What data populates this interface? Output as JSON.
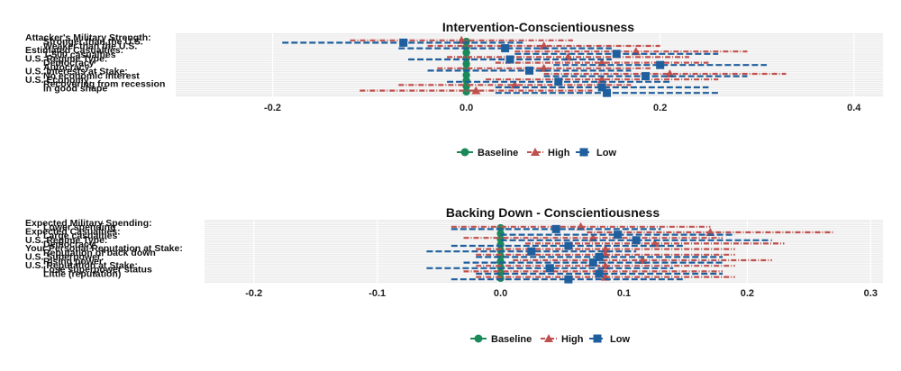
{
  "colors": {
    "Baseline": "#1b8a5a",
    "High": "#c0504d",
    "Low": "#1f5f9e",
    "panel": "#ebebeb",
    "grid": "#ffffff"
  },
  "legend_labels": [
    "Baseline",
    "High",
    "Low"
  ],
  "chart_data": [
    {
      "type": "scatter",
      "subtype": "coefficient-plot",
      "title": "Intervention-Conscientiousness",
      "xlim": [
        -0.3,
        0.43
      ],
      "xticks": [
        "-0.2",
        "0.0",
        "0.2",
        "0.4"
      ],
      "xtick_values": [
        -0.2,
        0.0,
        0.2,
        0.4
      ],
      "grid": true,
      "legend_position": "bottom",
      "series_names": [
        "Baseline",
        "High",
        "Low"
      ],
      "y_labels": [
        "Attacker's Military Strength:",
        "Stronger than the U.S.",
        "Weaker than the U.S.",
        "Estimated Casualties:",
        "1-500 casualties",
        "U.S. Regime Type:",
        "Democracy",
        "Autocracy",
        "U.S. Interests at Stake:",
        "No economic interest",
        "U.S. Economy:",
        "Recovering from recession",
        "In good shape"
      ],
      "series": [
        {
          "name": "Baseline",
          "x": [
            0,
            0,
            0,
            0,
            0,
            0,
            0,
            0,
            0,
            0
          ],
          "lo": [
            -0.01,
            -0.01,
            -0.01,
            -0.01,
            -0.01,
            -0.01,
            -0.01,
            -0.01,
            -0.01,
            -0.01
          ],
          "hi": [
            0.01,
            0.01,
            0.01,
            0.01,
            0.01,
            0.01,
            0.01,
            0.01,
            0.01,
            0.01
          ]
        },
        {
          "name": "High",
          "x": [
            -0.005,
            0.08,
            0.175,
            0.105,
            0.14,
            0.08,
            0.21,
            0.14,
            0.05,
            0.01
          ],
          "lo": [
            -0.12,
            -0.04,
            0.05,
            -0.02,
            0.03,
            -0.03,
            0.08,
            0.02,
            -0.07,
            -0.11
          ],
          "hi": [
            0.11,
            0.2,
            0.29,
            0.23,
            0.25,
            0.19,
            0.33,
            0.26,
            0.17,
            0.13
          ]
        },
        {
          "name": "Low",
          "x": [
            -0.065,
            0.04,
            0.155,
            0.045,
            0.2,
            0.065,
            0.185,
            0.095,
            0.14,
            0.145
          ],
          "lo": [
            -0.19,
            -0.07,
            0.05,
            -0.06,
            0.09,
            -0.04,
            0.08,
            -0.02,
            0.03,
            0.03
          ],
          "hi": [
            0.06,
            0.15,
            0.26,
            0.15,
            0.31,
            0.17,
            0.29,
            0.21,
            0.25,
            0.26
          ]
        }
      ]
    },
    {
      "type": "scatter",
      "subtype": "coefficient-plot",
      "title": "Backing Down - Conscientiousness",
      "xlim": [
        -0.24,
        0.31
      ],
      "xticks": [
        "-0.2",
        "-0.1",
        "0.0",
        "0.1",
        "0.2",
        "0.3"
      ],
      "xtick_values": [
        -0.2,
        -0.1,
        0.0,
        0.1,
        0.2,
        0.3
      ],
      "grid": true,
      "legend_position": "bottom",
      "series_names": [
        "Baseline",
        "High",
        "Low"
      ],
      "y_labels": [
        "Expected Military Spending:",
        "Lower spending",
        "Expected Casualties:",
        "Large casualties",
        "U.S. Regime Type:",
        "Democracy",
        "Your Personal Reputation at Stake:",
        "Reputation of back down",
        "U.S. Superpower:",
        "Rising power",
        "U.S. Reputation at Stake:",
        "Lose superpower status",
        "Little (reputation)"
      ],
      "series": [
        {
          "name": "Baseline",
          "x": [
            0,
            0,
            0,
            0,
            0,
            0,
            0,
            0,
            0,
            0
          ],
          "lo": [
            -0.008,
            -0.008,
            -0.008,
            -0.008,
            -0.008,
            -0.008,
            -0.008,
            -0.008,
            -0.008,
            -0.008
          ],
          "hi": [
            0.008,
            0.008,
            0.008,
            0.008,
            0.008,
            0.008,
            0.008,
            0.008,
            0.008,
            0.008
          ]
        },
        {
          "name": "High",
          "x": [
            0.065,
            0.17,
            0.075,
            0.125,
            0.085,
            0.085,
            0.115,
            0.085,
            0.08,
            0.085
          ],
          "lo": [
            -0.04,
            0.07,
            -0.03,
            0.02,
            -0.02,
            -0.02,
            0.01,
            -0.02,
            -0.03,
            -0.02
          ],
          "hi": [
            0.17,
            0.27,
            0.18,
            0.23,
            0.19,
            0.19,
            0.22,
            0.19,
            0.18,
            0.19
          ]
        },
        {
          "name": "Low",
          "x": [
            0.045,
            0.095,
            0.11,
            0.055,
            0.025,
            0.08,
            0.075,
            0.04,
            0.08,
            0.055
          ],
          "lo": [
            -0.04,
            0.0,
            0.0,
            -0.04,
            -0.06,
            -0.02,
            -0.03,
            -0.06,
            -0.02,
            -0.04
          ],
          "hi": [
            0.13,
            0.19,
            0.22,
            0.15,
            0.11,
            0.18,
            0.18,
            0.14,
            0.18,
            0.15
          ]
        }
      ]
    }
  ]
}
